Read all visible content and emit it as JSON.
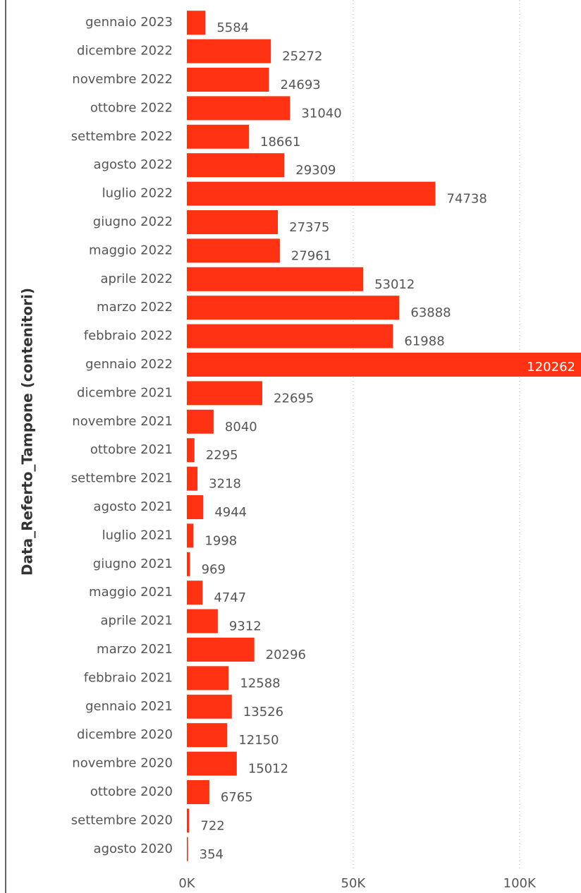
{
  "chart_data": {
    "type": "bar",
    "orientation": "horizontal",
    "y_label": "Data_Referto_Tampone (contenitori)",
    "categories": [
      "gennaio 2023",
      "dicembre 2022",
      "novembre 2022",
      "ottobre 2022",
      "settembre 2022",
      "agosto 2022",
      "luglio 2022",
      "giugno 2022",
      "maggio 2022",
      "aprile 2022",
      "marzo 2022",
      "febbraio 2022",
      "gennaio 2022",
      "dicembre 2021",
      "novembre 2021",
      "ottobre 2021",
      "settembre 2021",
      "agosto 2021",
      "luglio 2021",
      "giugno 2021",
      "maggio 2021",
      "aprile 2021",
      "marzo 2021",
      "febbraio 2021",
      "gennaio 2021",
      "dicembre 2020",
      "novembre 2020",
      "ottobre 2020",
      "settembre 2020",
      "agosto 2020"
    ],
    "values": [
      5584,
      25272,
      24693,
      31040,
      18661,
      29309,
      74738,
      27375,
      27961,
      53012,
      63888,
      61988,
      120262,
      22695,
      8040,
      2295,
      3218,
      4944,
      1998,
      969,
      4747,
      9312,
      20296,
      12588,
      13526,
      12150,
      15012,
      6765,
      722,
      354
    ],
    "color": "#ff3314",
    "xlim": [
      0,
      118500
    ],
    "xticks": [
      {
        "value": 0,
        "label": "0K"
      },
      {
        "value": 50000,
        "label": "50K"
      },
      {
        "value": 100000,
        "label": "100K"
      }
    ],
    "grid": true
  }
}
